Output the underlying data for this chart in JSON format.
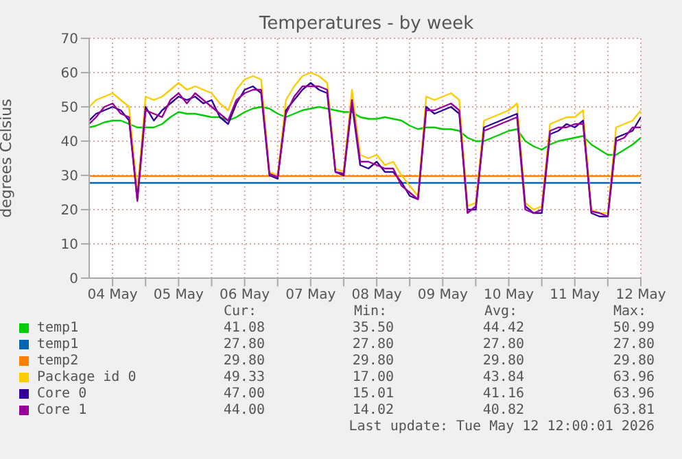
{
  "chart_data": {
    "type": "line",
    "title": "Temperatures - by week",
    "ylabel": "degrees Celsius",
    "x": [
      "2026-05-04T03:30",
      "2026-05-04T06:00",
      "2026-05-04T09:00",
      "2026-05-04T12:00",
      "2026-05-04T15:00",
      "2026-05-04T18:00",
      "2026-05-04T21:00",
      "2026-05-05T00:00",
      "2026-05-05T03:00",
      "2026-05-05T06:00",
      "2026-05-05T09:00",
      "2026-05-05T12:00",
      "2026-05-05T15:00",
      "2026-05-05T18:00",
      "2026-05-05T21:00",
      "2026-05-06T00:00",
      "2026-05-06T03:00",
      "2026-05-06T06:00",
      "2026-05-06T09:00",
      "2026-05-06T12:00",
      "2026-05-06T15:00",
      "2026-05-06T18:00",
      "2026-05-06T21:00",
      "2026-05-07T00:00",
      "2026-05-07T03:00",
      "2026-05-07T06:00",
      "2026-05-07T09:00",
      "2026-05-07T12:00",
      "2026-05-07T15:00",
      "2026-05-07T18:00",
      "2026-05-07T21:00",
      "2026-05-08T00:00",
      "2026-05-08T03:00",
      "2026-05-08T06:00",
      "2026-05-08T09:00",
      "2026-05-08T12:00",
      "2026-05-08T15:00",
      "2026-05-08T18:00",
      "2026-05-08T21:00",
      "2026-05-09T00:00",
      "2026-05-09T03:00",
      "2026-05-09T06:00",
      "2026-05-09T09:00",
      "2026-05-09T12:00",
      "2026-05-09T15:00",
      "2026-05-09T18:00",
      "2026-05-09T21:00",
      "2026-05-10T00:00",
      "2026-05-10T03:00",
      "2026-05-10T06:00",
      "2026-05-10T09:00",
      "2026-05-10T12:00",
      "2026-05-10T15:00",
      "2026-05-10T18:00",
      "2026-05-10T21:00",
      "2026-05-11T00:00",
      "2026-05-11T03:00",
      "2026-05-11T06:00",
      "2026-05-11T09:00",
      "2026-05-11T12:00",
      "2026-05-11T15:00",
      "2026-05-11T18:00",
      "2026-05-11T21:00",
      "2026-05-12T00:00",
      "2026-05-12T03:00",
      "2026-05-12T06:00",
      "2026-05-12T09:00",
      "2026-05-12T12:00"
    ],
    "series": [
      {
        "name": "temp1",
        "color": "#00cc00",
        "values": [
          44,
          44.5,
          45.5,
          46,
          46,
          45,
          44,
          44,
          44,
          45,
          47,
          48.5,
          48,
          48,
          47.5,
          47,
          47,
          46,
          47,
          48.5,
          49.5,
          50,
          49.5,
          48,
          47,
          48,
          49,
          49.5,
          50,
          49.5,
          49,
          48.5,
          48.5,
          47,
          46.5,
          46.5,
          47,
          46.5,
          46,
          44.5,
          43.5,
          44,
          44,
          43.5,
          43.5,
          43,
          41,
          40,
          40,
          41,
          42,
          43,
          43.5,
          40,
          38.5,
          37.5,
          39,
          40,
          40.5,
          41,
          41.5,
          39,
          37.5,
          36,
          36,
          37.5,
          39,
          41
        ]
      },
      {
        "name": "temp1",
        "color": "#0066b3",
        "x": [
          "2026-05-04T03:30",
          "2026-05-12T12:00"
        ],
        "values": [
          27.8,
          27.8
        ]
      },
      {
        "name": "temp2",
        "color": "#ff8000",
        "x": [
          "2026-05-04T03:30",
          "2026-05-12T12:00"
        ],
        "values": [
          29.8,
          29.8
        ]
      },
      {
        "name": "Package id 0",
        "color": "#ffcc00",
        "values": [
          50,
          52,
          53,
          54,
          52,
          50,
          25,
          53,
          52,
          53,
          55,
          57,
          55,
          56,
          55,
          54,
          51,
          49,
          55,
          58,
          59,
          58,
          31,
          30,
          52,
          56,
          59,
          60,
          59,
          57,
          32,
          31,
          55,
          36,
          35,
          36,
          33,
          34,
          30,
          27,
          24,
          53,
          52,
          53,
          54,
          52,
          21,
          22,
          46,
          47,
          48,
          49,
          51,
          22,
          20,
          21,
          45,
          46,
          47,
          47,
          49,
          20,
          19,
          19,
          44,
          45,
          46,
          49
        ]
      },
      {
        "name": "Core 0",
        "color": "#330099",
        "values": [
          46,
          48,
          49,
          50,
          49,
          46,
          23,
          50,
          46,
          49,
          51,
          53,
          52,
          53,
          51,
          52,
          47,
          45,
          51,
          55,
          56,
          54,
          30,
          29,
          49,
          52,
          55,
          57,
          55,
          54,
          31,
          30,
          51,
          33,
          32,
          34,
          31,
          31,
          28,
          24,
          23,
          50,
          48,
          49,
          50,
          48,
          20,
          20,
          44,
          45,
          46,
          47,
          48,
          21,
          19,
          19,
          42,
          43,
          45,
          44,
          46,
          19,
          18,
          18,
          41,
          42,
          43,
          47
        ]
      },
      {
        "name": "Core 1",
        "color": "#990099",
        "values": [
          45,
          47,
          50,
          51,
          48,
          47,
          22.5,
          49,
          48,
          47,
          52,
          54,
          51,
          54,
          52,
          50,
          48,
          46,
          52,
          54,
          55,
          55,
          30.5,
          29.5,
          48,
          53,
          56,
          56,
          56,
          55,
          31,
          30.5,
          52,
          34,
          34,
          33,
          32,
          32,
          27,
          25,
          23,
          49,
          49,
          50,
          51,
          49,
          19,
          21,
          43,
          44,
          45,
          46,
          47,
          20,
          19,
          20,
          43,
          44,
          44,
          45,
          45,
          19.5,
          19,
          18,
          40,
          41,
          44,
          44
        ]
      }
    ],
    "xlim": [
      "2026-05-04T03:30",
      "2026-05-12T12:00"
    ],
    "xticks": [
      {
        "value": "2026-05-04T12:00",
        "label": "04 May"
      },
      {
        "value": "2026-05-05T00:00",
        "label": null
      },
      {
        "value": "2026-05-05T12:00",
        "label": "05 May"
      },
      {
        "value": "2026-05-06T00:00",
        "label": null
      },
      {
        "value": "2026-05-06T12:00",
        "label": "06 May"
      },
      {
        "value": "2026-05-07T00:00",
        "label": null
      },
      {
        "value": "2026-05-07T12:00",
        "label": "07 May"
      },
      {
        "value": "2026-05-08T00:00",
        "label": null
      },
      {
        "value": "2026-05-08T12:00",
        "label": "08 May"
      },
      {
        "value": "2026-05-09T00:00",
        "label": null
      },
      {
        "value": "2026-05-09T12:00",
        "label": "09 May"
      },
      {
        "value": "2026-05-10T00:00",
        "label": null
      },
      {
        "value": "2026-05-10T12:00",
        "label": "10 May"
      },
      {
        "value": "2026-05-11T00:00",
        "label": null
      },
      {
        "value": "2026-05-11T12:00",
        "label": "11 May"
      },
      {
        "value": "2026-05-12T00:00",
        "label": null
      },
      {
        "value": "2026-05-12T12:00",
        "label": "12 May"
      }
    ],
    "ylim": [
      0,
      70
    ],
    "yticks": [
      0,
      10,
      20,
      30,
      40,
      50,
      60,
      70
    ],
    "grid": true,
    "legend": "bottom",
    "line_style": "solid",
    "annotations": [
      "Cur:",
      "Min:",
      "Avg:",
      "Max:",
      "41.08",
      "35.50",
      "44.42",
      "50.99",
      "27.80",
      "27.80",
      "27.80",
      "27.80",
      "29.80",
      "29.80",
      "29.80",
      "29.80",
      "49.33",
      "17.00",
      "43.84",
      "63.96",
      "47.00",
      "15.01",
      "41.16",
      "63.96",
      "44.00",
      "14.02",
      "40.82",
      "63.81",
      "Last update: Tue May 12 12:00:01 2026"
    ]
  }
}
